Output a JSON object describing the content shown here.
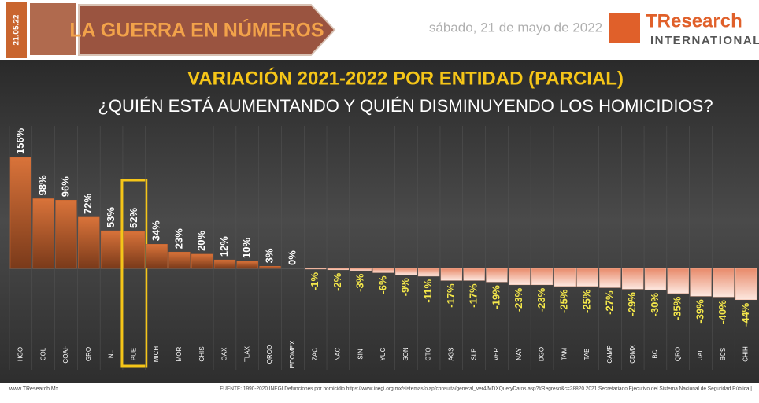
{
  "header": {
    "date_tag": "21.05.22",
    "banner": "LA GUERRA EN NÚMEROS",
    "date": "sábado, 21 de mayo de 2022",
    "logo_name": "TResearch",
    "logo_sub": "INTERNATIONAL"
  },
  "chart_data": {
    "type": "bar",
    "title": "VARIACIÓN 2021-2022 POR ENTIDAD (PARCIAL)",
    "subtitle": "¿QUIÉN ESTÁ AUMENTANDO Y QUIÉN DISMINUYENDO LOS HOMICIDIOS?",
    "categories": [
      "HGO",
      "COL",
      "COAH",
      "GRO",
      "NL",
      "PUE",
      "MICH",
      "MOR",
      "CHIS",
      "OAX",
      "TLAX",
      "QROO",
      "EDOMEX",
      "ZAC",
      "NAC",
      "SIN",
      "YUC",
      "SON",
      "GTO",
      "AGS",
      "SLP",
      "VER",
      "NAY",
      "DGO",
      "TAM",
      "TAB",
      "CAMP",
      "CDMX",
      "BC",
      "QRO",
      "JAL",
      "BCS",
      "CHIH"
    ],
    "values": [
      156,
      98,
      96,
      72,
      53,
      52,
      34,
      23,
      20,
      12,
      10,
      3,
      0,
      -1,
      -2,
      -3,
      -6,
      -9,
      -11,
      -17,
      -17,
      -19,
      -23,
      -23,
      -25,
      -25,
      -27,
      -29,
      -30,
      -35,
      -39,
      -40,
      -44
    ],
    "value_labels": [
      "156%",
      "98%",
      "96%",
      "72%",
      "53%",
      "52%",
      "34%",
      "23%",
      "20%",
      "12%",
      "10%",
      "3%",
      "0%",
      "-1%",
      "-2%",
      "-3%",
      "-6%",
      "-9%",
      "-11%",
      "-17%",
      "-17%",
      "-19%",
      "-23%",
      "-23%",
      "-25%",
      "-25%",
      "-27%",
      "-29%",
      "-30%",
      "-35%",
      "-39%",
      "-40%",
      "-44%"
    ],
    "positive_color": "#c9652e",
    "negative_color": "#f4b9a2",
    "highlight": "PUE"
  },
  "footer": {
    "site": "www.TResearch.Mx",
    "source": "FUENTE: 1990-2020 INEGI Defunciones por homicidio https://www.inegi.org.mx/sistemas/olap/consulta/general_ver4/MDXQueryDatos.asp?#Regreso&c=28820   2021 Secretariado Ejecutivo del Sistema Nacional de Seguridad Pública |"
  }
}
